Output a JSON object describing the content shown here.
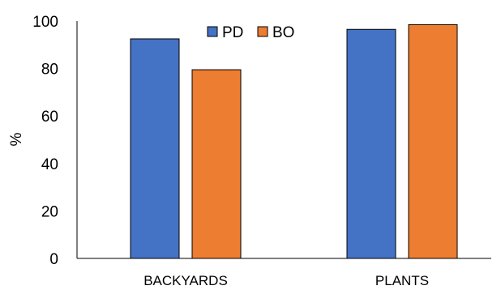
{
  "chart_data": {
    "type": "bar",
    "categories": [
      "BACKYARDS",
      "PLANTS"
    ],
    "series": [
      {
        "name": "PD",
        "values": [
          92.5,
          96.5
        ],
        "color": "#4472C4"
      },
      {
        "name": "BO",
        "values": [
          79.5,
          98.5
        ],
        "color": "#ED7D31"
      }
    ],
    "title": "",
    "xlabel": "",
    "ylabel": "%",
    "ylim": [
      0,
      100
    ],
    "yticks": [
      0,
      20,
      40,
      60,
      80,
      100
    ],
    "grid": false,
    "legend": "top-center"
  }
}
